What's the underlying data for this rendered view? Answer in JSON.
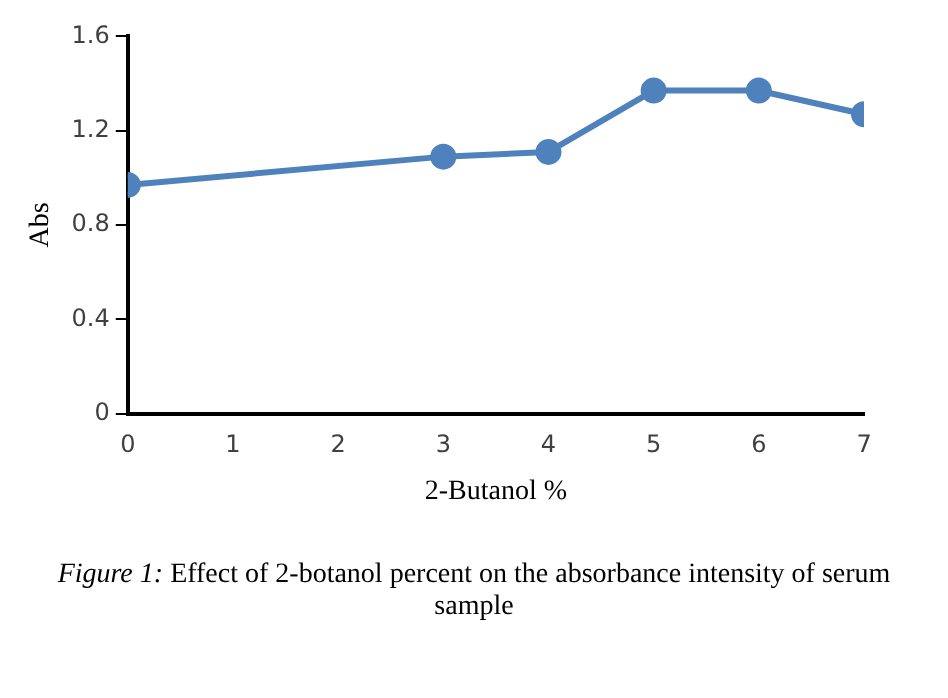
{
  "chart_data": {
    "type": "line",
    "xlabel": "2-Butanol %",
    "ylabel": "Abs",
    "x": [
      0,
      3,
      4,
      5,
      6,
      7
    ],
    "series": [
      {
        "color": "#4f81bd",
        "values": [
          0.97,
          1.09,
          1.11,
          1.37,
          1.37,
          1.27
        ]
      }
    ],
    "xlim": [
      0,
      7
    ],
    "xticks": [
      0,
      1,
      2,
      3,
      4,
      5,
      6,
      7
    ],
    "ylim": [
      0,
      1.6
    ],
    "yticks": [
      0,
      0.4,
      0.8,
      1.2,
      1.6
    ],
    "grid": false,
    "legend": false,
    "marker": "circle",
    "line_style": "solid",
    "annotations": [
      "Figure 1: Effect of 2-botanol percent on the absorbance intensity of serum sample"
    ]
  }
}
